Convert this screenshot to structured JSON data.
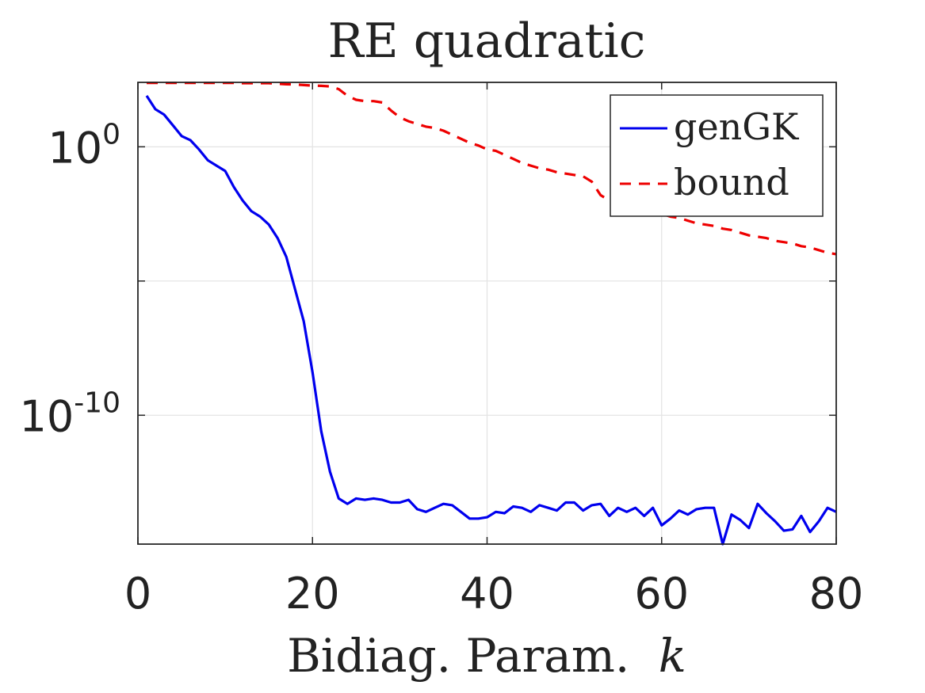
{
  "chart_data": {
    "type": "line",
    "title": "RE quadratic",
    "xlabel": "Bidiag. Param.",
    "xlabel_var": "k",
    "ylabel": "",
    "x_ticks": [
      "0",
      "20",
      "40",
      "60",
      "80"
    ],
    "y_ticks": [
      {
        "base": "10",
        "exp": "0",
        "value": 0
      },
      {
        "base": "10",
        "exp": "-10",
        "value": -10
      }
    ],
    "xlim": [
      0,
      80
    ],
    "ylim_log10": [
      -14.8,
      2.4
    ],
    "yscale": "log",
    "grid": true,
    "legend_position": "top-right",
    "series": [
      {
        "name": "genGK",
        "color": "#0000ee",
        "dash": "solid",
        "x": [
          1,
          2,
          3,
          4,
          5,
          6,
          7,
          8,
          9,
          10,
          11,
          12,
          13,
          14,
          15,
          16,
          17,
          18,
          19,
          20,
          21,
          22,
          23,
          24,
          25,
          26,
          27,
          28,
          29,
          30,
          31,
          32,
          33,
          34,
          35,
          36,
          37,
          38,
          39,
          40,
          41,
          42,
          43,
          44,
          45,
          46,
          47,
          48,
          49,
          50,
          51,
          52,
          53,
          54,
          55,
          56,
          57,
          58,
          59,
          60,
          61,
          62,
          63,
          64,
          65,
          66,
          67,
          68,
          69,
          70,
          71,
          72,
          73,
          74,
          75,
          76,
          77,
          78,
          79,
          80
        ],
        "log10y": [
          1.9,
          1.4,
          1.2,
          0.8,
          0.4,
          0.25,
          -0.1,
          -0.5,
          -0.7,
          -0.9,
          -1.5,
          -2.0,
          -2.4,
          -2.6,
          -2.9,
          -3.4,
          -4.1,
          -5.3,
          -6.5,
          -8.4,
          -10.6,
          -12.1,
          -13.1,
          -13.3,
          -13.1,
          -13.15,
          -13.1,
          -13.15,
          -13.25,
          -13.25,
          -13.15,
          -13.5,
          -13.6,
          -13.45,
          -13.3,
          -13.35,
          -13.6,
          -13.85,
          -13.85,
          -13.8,
          -13.6,
          -13.65,
          -13.4,
          -13.45,
          -13.6,
          -13.35,
          -13.45,
          -13.55,
          -13.25,
          -13.25,
          -13.55,
          -13.35,
          -13.3,
          -13.75,
          -13.45,
          -13.6,
          -13.45,
          -13.75,
          -13.45,
          -14.1,
          -13.85,
          -13.55,
          -13.7,
          -13.5,
          -13.45,
          -13.45,
          -14.8,
          -13.7,
          -13.9,
          -14.2,
          -13.3,
          -13.65,
          -13.95,
          -14.3,
          -14.25,
          -13.75,
          -14.35,
          -13.95,
          -13.45,
          -13.6
        ]
      },
      {
        "name": "bound",
        "color": "#ee0000",
        "dash": "dashed",
        "x": [
          1,
          2,
          3,
          4,
          5,
          6,
          7,
          8,
          9,
          10,
          11,
          12,
          13,
          14,
          15,
          16,
          17,
          18,
          19,
          20,
          21,
          22,
          23,
          24,
          25,
          26,
          27,
          28,
          29,
          30,
          31,
          32,
          33,
          34,
          35,
          36,
          37,
          38,
          39,
          40,
          41,
          42,
          43,
          44,
          45,
          46,
          47,
          48,
          49,
          50,
          51,
          52,
          53,
          54,
          55,
          56,
          57,
          58,
          59,
          60,
          61,
          62,
          63,
          64,
          65,
          66,
          67,
          68,
          69,
          70,
          71,
          72,
          73,
          74,
          75,
          76,
          77,
          78,
          79,
          80
        ],
        "log10y": [
          2.38,
          2.38,
          2.38,
          2.38,
          2.38,
          2.38,
          2.38,
          2.38,
          2.38,
          2.38,
          2.38,
          2.37,
          2.37,
          2.37,
          2.37,
          2.35,
          2.33,
          2.32,
          2.3,
          2.28,
          2.27,
          2.25,
          2.15,
          1.9,
          1.75,
          1.7,
          1.7,
          1.65,
          1.35,
          1.1,
          0.95,
          0.85,
          0.75,
          0.7,
          0.6,
          0.45,
          0.3,
          0.15,
          0.05,
          -0.1,
          -0.15,
          -0.3,
          -0.45,
          -0.6,
          -0.7,
          -0.8,
          -0.85,
          -0.95,
          -1.0,
          -1.05,
          -1.1,
          -1.3,
          -1.8,
          -2.0,
          -2.1,
          -2.3,
          -2.35,
          -2.4,
          -2.45,
          -2.5,
          -2.6,
          -2.65,
          -2.75,
          -2.85,
          -2.9,
          -2.95,
          -3.05,
          -3.1,
          -3.2,
          -3.3,
          -3.35,
          -3.4,
          -3.5,
          -3.55,
          -3.6,
          -3.7,
          -3.75,
          -3.85,
          -3.95,
          -4.0
        ]
      }
    ]
  }
}
